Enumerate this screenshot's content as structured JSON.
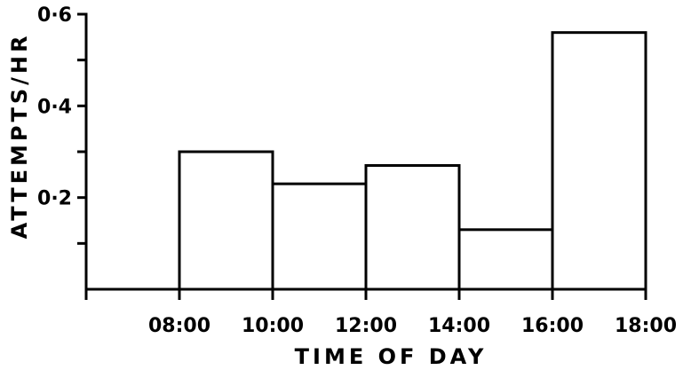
{
  "chart_data": {
    "type": "bar",
    "title": "",
    "xlabel": "TIME OF DAY",
    "ylabel": "ATTEMPTS/HR",
    "x_tick_labels": [
      "08:00",
      "10:00",
      "12:00",
      "14:00",
      "16:00",
      "18:00"
    ],
    "y_tick_labels": [
      "0·2",
      "0·4",
      "0·6"
    ],
    "categories": [
      "08:00-10:00",
      "10:00-12:00",
      "12:00-14:00",
      "14:00-16:00",
      "16:00-18:00"
    ],
    "bins": [
      [
        8,
        10
      ],
      [
        10,
        12
      ],
      [
        12,
        14
      ],
      [
        14,
        16
      ],
      [
        16,
        18
      ]
    ],
    "values": [
      0.3,
      0.23,
      0.27,
      0.13,
      0.56
    ],
    "xlim": [
      6,
      18
    ],
    "ylim": [
      0,
      0.6
    ],
    "y_major_ticks": [
      0.2,
      0.4,
      0.6
    ],
    "y_minor_ticks": [
      0.1,
      0.3,
      0.5
    ],
    "x_ticks": [
      6,
      8,
      10,
      12,
      14,
      16,
      18
    ],
    "grid": false,
    "legend": "none",
    "colors": {
      "ink": "#000000",
      "bar_fill": "#ffffff"
    }
  }
}
